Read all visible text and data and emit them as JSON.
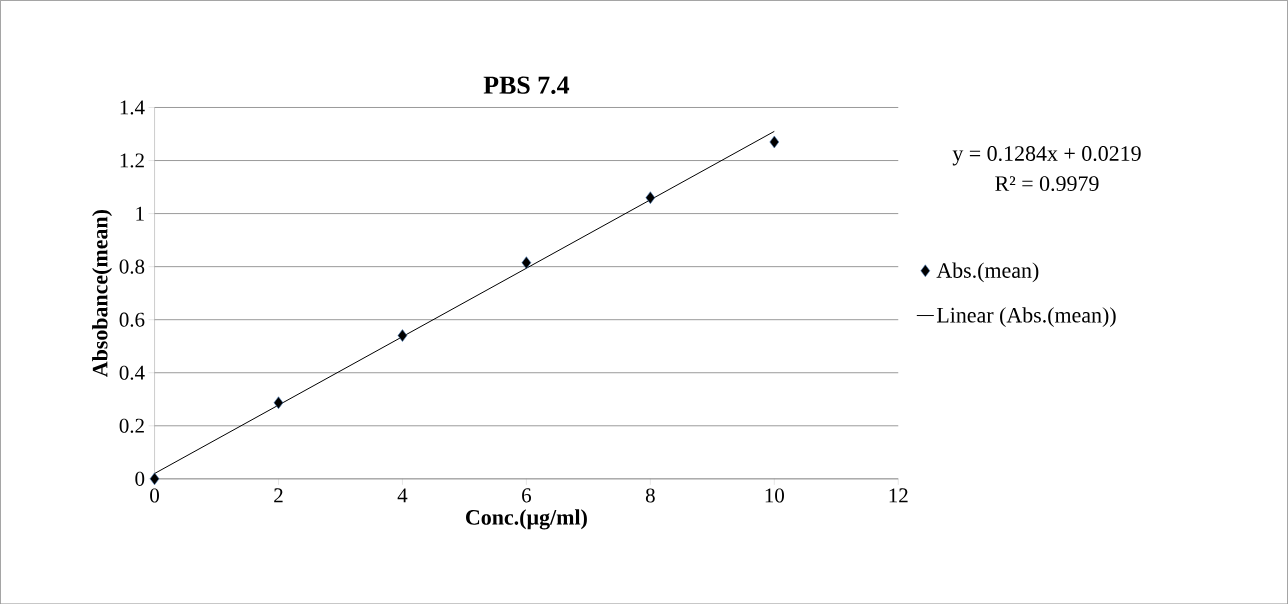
{
  "chart_data": {
    "type": "scatter",
    "title": "PBS 7.4",
    "xlabel": "Conc.(µg/ml)",
    "ylabel": "Absobance(mean)",
    "series": [
      {
        "name": "Abs.(mean)",
        "color": "#000000",
        "marker": "diamond",
        "x": [
          0,
          2,
          4,
          6,
          8,
          10
        ],
        "values": [
          0,
          0.287,
          0.54,
          0.815,
          1.06,
          1.27
        ]
      },
      {
        "name": "Linear (Abs.(mean))",
        "type": "line",
        "color": "#000000",
        "marker": "none",
        "line_style": "solid",
        "x": [
          0,
          10
        ],
        "values": [
          0.02,
          1.31
        ]
      }
    ],
    "annotations": [
      "y = 0.1284x + 0.0219",
      "R² = 0.9979"
    ],
    "xlim": [
      0,
      12
    ],
    "ylim": [
      0,
      1.4
    ],
    "xticks": [
      0,
      2,
      4,
      6,
      8,
      10,
      12
    ],
    "yticks": [
      0,
      0.2,
      0.4,
      0.6,
      0.8,
      1,
      1.2,
      1.4
    ],
    "grid": "y",
    "legend": "right"
  }
}
